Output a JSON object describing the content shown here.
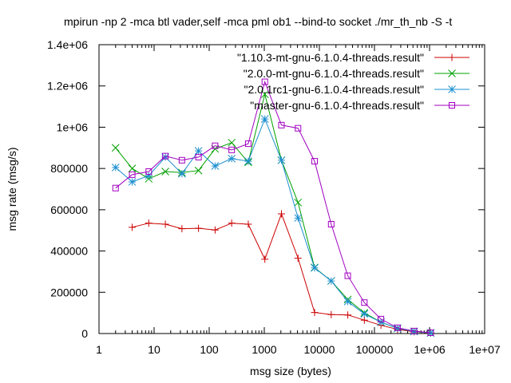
{
  "chart_data": {
    "type": "line",
    "title": "mpirun -np 2 -mca btl vader,self -mca pml ob1 --bind-to socket ./mr_th_nb -S -t",
    "xlabel": "msg size (bytes)",
    "ylabel": "msg rate (msg/s)",
    "xscale": "log",
    "xlim": [
      1,
      10000000
    ],
    "ylim": [
      0,
      1400000
    ],
    "grid": false,
    "legend_position": "top-right",
    "x_ticks": [
      {
        "value": 1,
        "label": "1"
      },
      {
        "value": 10,
        "label": "10"
      },
      {
        "value": 100,
        "label": "100"
      },
      {
        "value": 1000,
        "label": "1000"
      },
      {
        "value": 10000,
        "label": "10000"
      },
      {
        "value": 100000,
        "label": "100000"
      },
      {
        "value": 1000000,
        "label": "1e+06"
      },
      {
        "value": 10000000,
        "label": "1e+07"
      }
    ],
    "y_ticks": [
      {
        "value": 0,
        "label": "0"
      },
      {
        "value": 200000,
        "label": "200000"
      },
      {
        "value": 400000,
        "label": "400000"
      },
      {
        "value": 600000,
        "label": "600000"
      },
      {
        "value": 800000,
        "label": "800000"
      },
      {
        "value": 1000000,
        "label": "1e+06"
      },
      {
        "value": 1200000,
        "label": "1.2e+06"
      },
      {
        "value": 1400000,
        "label": "1.4e+06"
      }
    ],
    "series": [
      {
        "name": "\"1.10.3-mt-gnu-6.1.0.4-threads.result\"",
        "color": "#cc0000",
        "marker": "plus",
        "x": [
          4,
          8,
          16,
          32,
          64,
          128,
          256,
          512,
          1024,
          2048,
          4096,
          8192,
          16384,
          32768,
          65536,
          131072,
          262144,
          524288,
          1048576
        ],
        "y": [
          515000,
          535000,
          530000,
          508000,
          510000,
          502000,
          535000,
          530000,
          360000,
          580000,
          365000,
          102000,
          92000,
          90000,
          65000,
          40000,
          20000,
          8000,
          3000
        ]
      },
      {
        "name": "\"2.0.0-mt-gnu-6.1.0.4-threads.result\"",
        "color": "#00a000",
        "marker": "cross",
        "x": [
          2,
          4,
          8,
          16,
          32,
          64,
          128,
          256,
          512,
          1024,
          2048,
          4096,
          8192,
          16384,
          32768,
          65536,
          131072,
          262144,
          524288,
          1048576
        ],
        "y": [
          900000,
          800000,
          750000,
          785000,
          780000,
          790000,
          895000,
          925000,
          830000,
          1160000,
          840000,
          635000,
          320000,
          255000,
          165000,
          100000,
          55000,
          25000,
          10000,
          3000
        ]
      },
      {
        "name": "\"2.0.1rc1-gnu-6.1.0.4-threads.result\"",
        "color": "#1e90d0",
        "marker": "star",
        "x": [
          2,
          4,
          8,
          16,
          32,
          64,
          128,
          256,
          512,
          1024,
          2048,
          4096,
          8192,
          16384,
          32768,
          65536,
          131072,
          262144,
          524288,
          1048576
        ],
        "y": [
          805000,
          735000,
          765000,
          855000,
          775000,
          885000,
          812000,
          848000,
          835000,
          1040000,
          840000,
          560000,
          318000,
          255000,
          155000,
          95000,
          55000,
          25000,
          10000,
          3000
        ]
      },
      {
        "name": "\"master-gnu-6.1.0.4-threads.result\"",
        "color": "#a000c0",
        "marker": "square",
        "x": [
          2,
          4,
          8,
          16,
          32,
          64,
          128,
          256,
          512,
          1024,
          2048,
          4096,
          8192,
          16384,
          32768,
          65536,
          131072,
          262144,
          524288,
          1048576
        ],
        "y": [
          705000,
          770000,
          785000,
          860000,
          840000,
          855000,
          910000,
          890000,
          920000,
          1220000,
          1010000,
          995000,
          835000,
          530000,
          280000,
          150000,
          70000,
          28000,
          12000,
          4000
        ]
      }
    ]
  }
}
